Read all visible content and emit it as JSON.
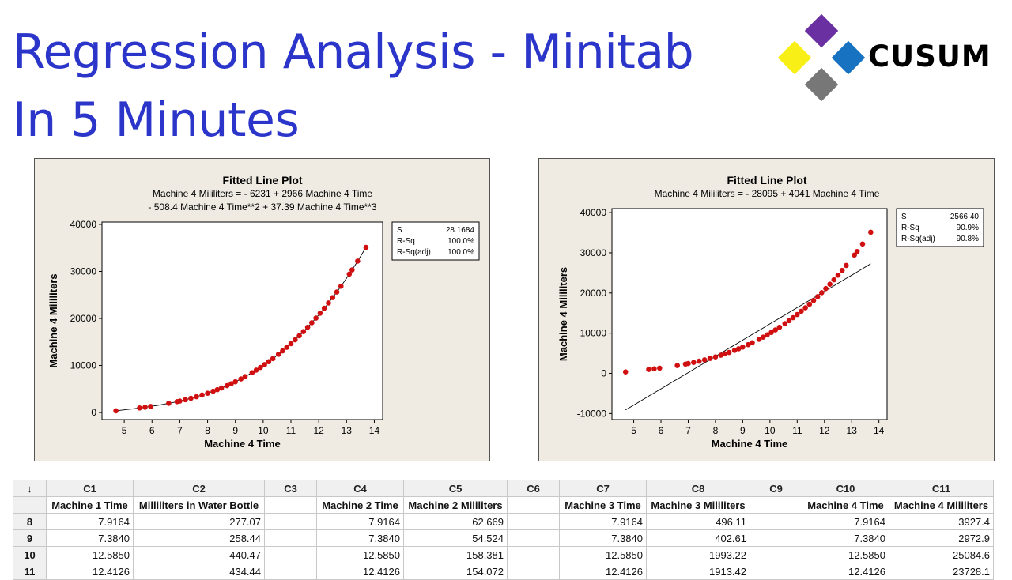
{
  "title": {
    "line1": "Regression Analysis - Minitab",
    "line2": "In 5 Minutes"
  },
  "logo": {
    "text": "CUSUM",
    "colors": [
      "#6a2fa0",
      "#f7ef15",
      "#1773c2",
      "#777777"
    ]
  },
  "chart_data": [
    {
      "type": "scatter",
      "title": "Fitted Line Plot",
      "equation": [
        "Machine 4 Mililiters =  - 6231 + 2966 Machine 4 Time",
        "- 508.4 Machine 4 Time**2 + 37.39 Machine 4 Time**3"
      ],
      "xlabel": "Machine 4 Time",
      "ylabel": "Machine 4 Mililiters",
      "xlim": [
        4.2,
        14.3
      ],
      "ylim": [
        -1500,
        40500
      ],
      "xticks": [
        "5",
        "6",
        "7",
        "8",
        "9",
        "10",
        "11",
        "12",
        "13",
        "14"
      ],
      "yticks": [
        "0",
        "10000",
        "20000",
        "30000",
        "40000"
      ],
      "fit": "cubic",
      "fit_coefficients": [
        -6231,
        2966,
        -508.4,
        37.39
      ],
      "stats": [
        {
          "label": "S",
          "value": "28.1684"
        },
        {
          "label": "R-Sq",
          "value": "100.0%"
        },
        {
          "label": "R-Sq(adj)",
          "value": "100.0%"
        }
      ],
      "point_color": "#d01010",
      "x": [
        4.7,
        5.55,
        5.75,
        5.95,
        6.6,
        6.9,
        7.0,
        7.2,
        7.4,
        7.6,
        7.8,
        8.0,
        8.2,
        8.35,
        8.5,
        8.7,
        8.85,
        9.0,
        9.2,
        9.35,
        9.6,
        9.75,
        9.9,
        10.05,
        10.2,
        10.35,
        10.55,
        10.7,
        10.85,
        11.0,
        11.15,
        11.3,
        11.45,
        11.6,
        11.75,
        11.9,
        12.05,
        12.2,
        12.35,
        12.5,
        12.65,
        12.8,
        13.1,
        13.2,
        13.4,
        13.7
      ]
    },
    {
      "type": "scatter",
      "title": "Fitted Line Plot",
      "equation": [
        "Machine 4 Mililiters =  - 28095 + 4041 Machine 4 Time"
      ],
      "xlabel": "Machine 4 Time",
      "ylabel": "Machine 4 Mililiters",
      "xlim": [
        4.2,
        14.3
      ],
      "ylim": [
        -11500,
        41000
      ],
      "xticks": [
        "5",
        "6",
        "7",
        "8",
        "9",
        "10",
        "11",
        "12",
        "13",
        "14"
      ],
      "yticks": [
        "-10000",
        "0",
        "10000",
        "20000",
        "30000",
        "40000"
      ],
      "fit": "linear",
      "fit_coefficients": [
        -28095,
        4041
      ],
      "stats": [
        {
          "label": "S",
          "value": "2566.40"
        },
        {
          "label": "R-Sq",
          "value": "90.9%"
        },
        {
          "label": "R-Sq(adj)",
          "value": "90.8%"
        }
      ],
      "point_color": "#d01010",
      "x": [
        4.7,
        5.55,
        5.75,
        5.95,
        6.6,
        6.9,
        7.0,
        7.2,
        7.4,
        7.6,
        7.8,
        8.0,
        8.2,
        8.35,
        8.5,
        8.7,
        8.85,
        9.0,
        9.2,
        9.35,
        9.6,
        9.75,
        9.9,
        10.05,
        10.2,
        10.35,
        10.55,
        10.7,
        10.85,
        11.0,
        11.15,
        11.3,
        11.45,
        11.6,
        11.75,
        11.9,
        12.05,
        12.2,
        12.35,
        12.5,
        12.65,
        12.8,
        13.1,
        13.2,
        13.4,
        13.7
      ]
    }
  ],
  "worksheet": {
    "corner": "↓",
    "columns": [
      "C1",
      "C2",
      "C3",
      "C4",
      "C5",
      "C6",
      "C7",
      "C8",
      "C9",
      "C10",
      "C11"
    ],
    "names": [
      "Machine 1 Time",
      "Milliliters in Water Bottle",
      "",
      "Machine 2 Time",
      "Machine 2 Mililiters",
      "",
      "Machine 3 Time",
      "Machine 3 Mililiters",
      "",
      "Machine 4 Time",
      "Machine 4 Mililiters"
    ],
    "rows": [
      {
        "n": "8",
        "cells": [
          "7.9164",
          "277.07",
          "",
          "7.9164",
          "62.669",
          "",
          "7.9164",
          "496.11",
          "",
          "7.9164",
          "3927.4"
        ]
      },
      {
        "n": "9",
        "cells": [
          "7.3840",
          "258.44",
          "",
          "7.3840",
          "54.524",
          "",
          "7.3840",
          "402.61",
          "",
          "7.3840",
          "2972.9"
        ]
      },
      {
        "n": "10",
        "cells": [
          "12.5850",
          "440.47",
          "",
          "12.5850",
          "158.381",
          "",
          "12.5850",
          "1993.22",
          "",
          "12.5850",
          "25084.6"
        ]
      },
      {
        "n": "11",
        "cells": [
          "12.4126",
          "434.44",
          "",
          "12.4126",
          "154.072",
          "",
          "12.4126",
          "1913.42",
          "",
          "12.4126",
          "23728.1"
        ]
      }
    ]
  }
}
